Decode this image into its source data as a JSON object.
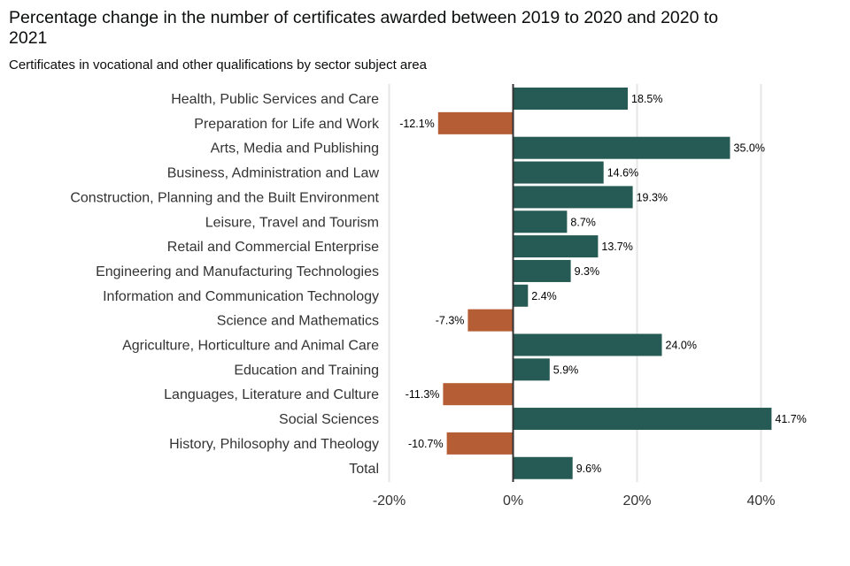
{
  "chart_data": {
    "type": "bar",
    "orientation": "horizontal",
    "title": "Percentage change in the number of certificates awarded between 2019 to 2020 and 2020 to 2021",
    "subtitle": "Certificates in vocational and other qualifications by sector subject area",
    "categories": [
      "Health, Public Services and Care",
      "Preparation for Life and Work",
      "Arts, Media and Publishing",
      "Business, Administration and Law",
      "Construction, Planning and the Built Environment",
      "Leisure, Travel and Tourism",
      "Retail and Commercial Enterprise",
      "Engineering and Manufacturing Technologies",
      "Information and Communication Technology",
      "Science and Mathematics",
      "Agriculture, Horticulture and Animal Care",
      "Education and Training",
      "Languages, Literature and Culture",
      "Social Sciences",
      "History, Philosophy and Theology",
      "Total"
    ],
    "values": [
      18.5,
      -12.1,
      35.0,
      14.6,
      19.3,
      8.7,
      13.7,
      9.3,
      2.4,
      -7.3,
      24.0,
      5.9,
      -11.3,
      41.7,
      -10.7,
      9.6
    ],
    "data_labels": [
      "18.5%",
      "-12.1%",
      "35.0%",
      "14.6%",
      "19.3%",
      "8.7%",
      "13.7%",
      "9.3%",
      "2.4%",
      "-7.3%",
      "24.0%",
      "5.9%",
      "-11.3%",
      "41.7%",
      "-10.7%",
      "9.6%"
    ],
    "xlim": [
      -22,
      43
    ],
    "xticks": [
      -20,
      0,
      20,
      40
    ],
    "xtick_labels": [
      "-20%",
      "0%",
      "20%",
      "40%"
    ],
    "grid": "vertical",
    "colors": {
      "positive": "#265a54",
      "negative": "#b55d35"
    }
  }
}
